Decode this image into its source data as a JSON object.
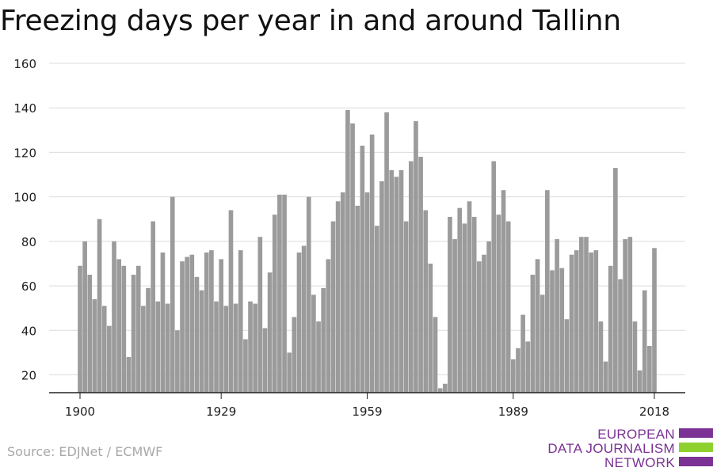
{
  "title": "Freezing days per year in and around Tallinn",
  "source": "Source: EDJNet / ECMWF",
  "logo": {
    "line1": "EUROPEAN",
    "line2": "DATA JOURNALISM",
    "line3": "NETWORK",
    "colors": [
      "#7b3294",
      "#8ed12f",
      "#7b3294"
    ]
  },
  "chart_data": {
    "type": "bar",
    "bar_color": "#9b9b9b",
    "x_start": 1900,
    "x_end": 2018,
    "xticks": [
      1900,
      1929,
      1959,
      1989,
      2018
    ],
    "yticks": [
      20,
      40,
      60,
      80,
      100,
      120,
      140,
      160
    ],
    "ylim": [
      12,
      160
    ],
    "grid": true,
    "values": [
      69,
      80,
      65,
      54,
      90,
      51,
      42,
      80,
      72,
      69,
      28,
      65,
      69,
      51,
      59,
      89,
      53,
      75,
      52,
      100,
      40,
      71,
      73,
      74,
      64,
      58,
      75,
      76,
      53,
      72,
      51,
      94,
      52,
      76,
      36,
      53,
      52,
      82,
      41,
      66,
      92,
      101,
      101,
      30,
      46,
      75,
      78,
      100,
      56,
      44,
      59,
      72,
      89,
      98,
      102,
      139,
      133,
      96,
      123,
      102,
      128,
      87,
      107,
      138,
      112,
      109,
      112,
      89,
      116,
      134,
      118,
      94,
      70,
      46,
      14,
      16,
      91,
      81,
      95,
      88,
      98,
      91,
      71,
      74,
      80,
      116,
      92,
      103,
      89,
      27,
      32,
      47,
      35,
      65,
      72,
      56,
      103,
      67,
      81,
      68,
      45,
      74,
      76,
      82,
      82,
      75,
      76,
      44,
      26,
      69,
      113,
      63,
      81,
      82,
      44,
      22,
      58,
      33,
      77
    ]
  }
}
